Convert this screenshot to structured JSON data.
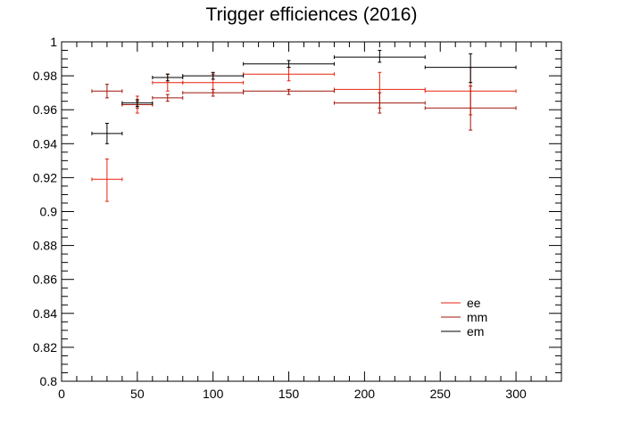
{
  "chart_data": {
    "type": "scatter",
    "title": "Trigger efficiences (2016)",
    "xlabel": "",
    "ylabel": "",
    "xlim": [
      0,
      330
    ],
    "ylim": [
      0.8,
      1.0
    ],
    "x_tick_labels": [
      "0",
      "50",
      "100",
      "150",
      "200",
      "250",
      "300"
    ],
    "x_ticks": [
      0,
      50,
      100,
      150,
      200,
      250,
      300
    ],
    "y_tick_labels": [
      "0.8",
      "0.82",
      "0.84",
      "0.86",
      "0.88",
      "0.9",
      "0.92",
      "0.94",
      "0.96",
      "0.98",
      "1"
    ],
    "y_ticks": [
      0.8,
      0.82,
      0.84,
      0.86,
      0.88,
      0.9,
      0.92,
      0.94,
      0.96,
      0.98,
      1.0
    ],
    "grid": false,
    "legend_position": "bottom-right",
    "series": [
      {
        "name": "ee",
        "color": "#e8230e",
        "points": [
          {
            "x": 30,
            "xlo": 20,
            "xhi": 40,
            "y": 0.919,
            "ylo": 0.906,
            "yhi": 0.931
          },
          {
            "x": 50,
            "xlo": 40,
            "xhi": 60,
            "y": 0.963,
            "ylo": 0.958,
            "yhi": 0.968
          },
          {
            "x": 70,
            "xlo": 60,
            "xhi": 80,
            "y": 0.976,
            "ylo": 0.971,
            "yhi": 0.981
          },
          {
            "x": 100,
            "xlo": 80,
            "xhi": 120,
            "y": 0.976,
            "ylo": 0.97,
            "yhi": 0.981
          },
          {
            "x": 150,
            "xlo": 120,
            "xhi": 180,
            "y": 0.981,
            "ylo": 0.977,
            "yhi": 0.985
          },
          {
            "x": 210,
            "xlo": 180,
            "xhi": 240,
            "y": 0.972,
            "ylo": 0.961,
            "yhi": 0.982
          },
          {
            "x": 270,
            "xlo": 240,
            "xhi": 300,
            "y": 0.971,
            "ylo": 0.957,
            "yhi": 0.985
          }
        ]
      },
      {
        "name": "mm",
        "color": "#a0160a",
        "points": [
          {
            "x": 30,
            "xlo": 20,
            "xhi": 40,
            "y": 0.971,
            "ylo": 0.967,
            "yhi": 0.975
          },
          {
            "x": 50,
            "xlo": 40,
            "xhi": 60,
            "y": 0.963,
            "ylo": 0.961,
            "yhi": 0.965
          },
          {
            "x": 70,
            "xlo": 60,
            "xhi": 80,
            "y": 0.967,
            "ylo": 0.965,
            "yhi": 0.969
          },
          {
            "x": 100,
            "xlo": 80,
            "xhi": 120,
            "y": 0.97,
            "ylo": 0.968,
            "yhi": 0.972
          },
          {
            "x": 150,
            "xlo": 120,
            "xhi": 180,
            "y": 0.971,
            "ylo": 0.969,
            "yhi": 0.972
          },
          {
            "x": 210,
            "xlo": 180,
            "xhi": 240,
            "y": 0.964,
            "ylo": 0.958,
            "yhi": 0.97
          },
          {
            "x": 270,
            "xlo": 240,
            "xhi": 300,
            "y": 0.961,
            "ylo": 0.948,
            "yhi": 0.974
          }
        ]
      },
      {
        "name": "em",
        "color": "#000000",
        "points": [
          {
            "x": 30,
            "xlo": 20,
            "xhi": 40,
            "y": 0.946,
            "ylo": 0.94,
            "yhi": 0.952
          },
          {
            "x": 50,
            "xlo": 40,
            "xhi": 60,
            "y": 0.964,
            "ylo": 0.962,
            "yhi": 0.966
          },
          {
            "x": 70,
            "xlo": 60,
            "xhi": 80,
            "y": 0.979,
            "ylo": 0.977,
            "yhi": 0.981
          },
          {
            "x": 100,
            "xlo": 80,
            "xhi": 120,
            "y": 0.98,
            "ylo": 0.978,
            "yhi": 0.982
          },
          {
            "x": 150,
            "xlo": 120,
            "xhi": 180,
            "y": 0.987,
            "ylo": 0.985,
            "yhi": 0.989
          },
          {
            "x": 210,
            "xlo": 180,
            "xhi": 240,
            "y": 0.991,
            "ylo": 0.988,
            "yhi": 0.995
          },
          {
            "x": 270,
            "xlo": 240,
            "xhi": 300,
            "y": 0.985,
            "ylo": 0.976,
            "yhi": 0.993
          }
        ]
      }
    ]
  }
}
